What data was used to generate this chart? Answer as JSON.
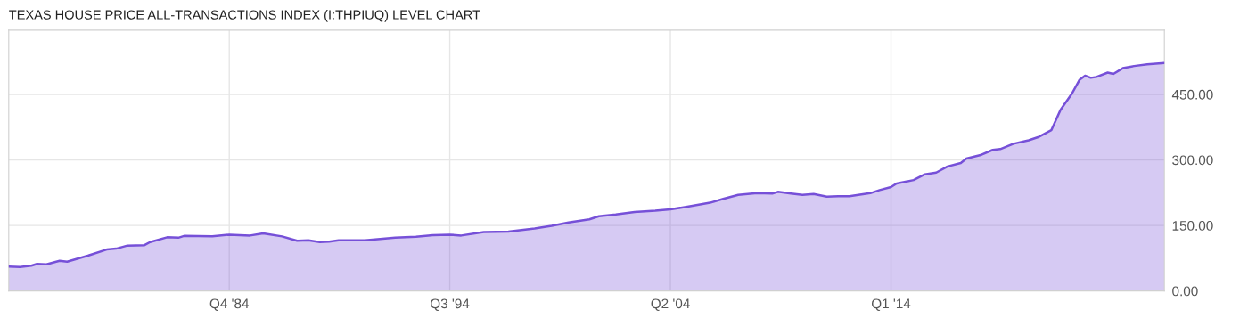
{
  "chart_data": {
    "type": "area",
    "title": "TEXAS HOUSE PRICE ALL-TRANSACTIONS INDEX (I:THPIUQ) LEVEL CHART",
    "x": [
      "1975-01",
      "1975-07",
      "1976-01",
      "1976-04",
      "1976-09",
      "1977-04",
      "1977-08",
      "1978-07",
      "1979-05",
      "1979-10",
      "1980-04",
      "1981-01",
      "1981-04",
      "1982-01",
      "1982-07",
      "1982-10",
      "1984-01",
      "1984-10",
      "1985-09",
      "1986-04",
      "1987-02",
      "1987-10",
      "1988-04",
      "1988-10",
      "1989-03",
      "1989-08",
      "1990-10",
      "1992-02",
      "1993-01",
      "1993-10",
      "1994-07",
      "1995-01",
      "1996-01",
      "1997-02",
      "1998-04",
      "1999-01",
      "1999-10",
      "2000-09",
      "2001-02",
      "2001-11",
      "2002-09",
      "2003-08",
      "2004-04",
      "2005-01",
      "2006-01",
      "2006-08",
      "2007-04",
      "2008-02",
      "2008-10",
      "2009-01",
      "2009-08",
      "2010-02",
      "2010-08",
      "2011-03",
      "2011-09",
      "2012-03",
      "2013-02",
      "2013-07",
      "2014-01",
      "2014-04",
      "2015-01",
      "2015-07",
      "2016-01",
      "2016-07",
      "2017-02",
      "2017-05",
      "2018-01",
      "2018-07",
      "2018-11",
      "2019-06",
      "2020-02",
      "2020-07",
      "2021-02",
      "2021-07",
      "2022-01",
      "2022-05",
      "2022-08",
      "2022-11",
      "2023-02",
      "2023-08",
      "2023-11",
      "2024-04",
      "2024-10",
      "2025-05",
      "2026-02"
    ],
    "series": [
      {
        "color": "#7650d8",
        "values": [
          56,
          55,
          58,
          62,
          61,
          69,
          67,
          81,
          95,
          97,
          104,
          105,
          112,
          123,
          122,
          126,
          125,
          129,
          127,
          132,
          125,
          115,
          116,
          112,
          113,
          116,
          116,
          122,
          124,
          128,
          129,
          127,
          135,
          136,
          143,
          149,
          157,
          164,
          171,
          175,
          181,
          184,
          187,
          193,
          202,
          211,
          220,
          224,
          223,
          227,
          223,
          220,
          222,
          216,
          217,
          217,
          224,
          231,
          238,
          246,
          254,
          267,
          271,
          285,
          293,
          303,
          312,
          323,
          325,
          337,
          345,
          352,
          368,
          415,
          452,
          483,
          493,
          488,
          490,
          500,
          497,
          510,
          515,
          519,
          522
        ]
      }
    ],
    "xlim": [
      "1975-01",
      "2026-02"
    ],
    "xticks": [
      {
        "value": "1984-10",
        "label": "Q4 '84"
      },
      {
        "value": "1994-07",
        "label": "Q3 '94"
      },
      {
        "value": "2004-04",
        "label": "Q2 '04"
      },
      {
        "value": "2014-01",
        "label": "Q1 '14"
      }
    ],
    "ylim": [
      0,
      597
    ],
    "yticks": [
      {
        "value": 0,
        "label": "0.00"
      },
      {
        "value": 150,
        "label": "150.00"
      },
      {
        "value": 300,
        "label": "300.00"
      },
      {
        "value": 450,
        "label": "450.00"
      }
    ],
    "grid": true
  }
}
